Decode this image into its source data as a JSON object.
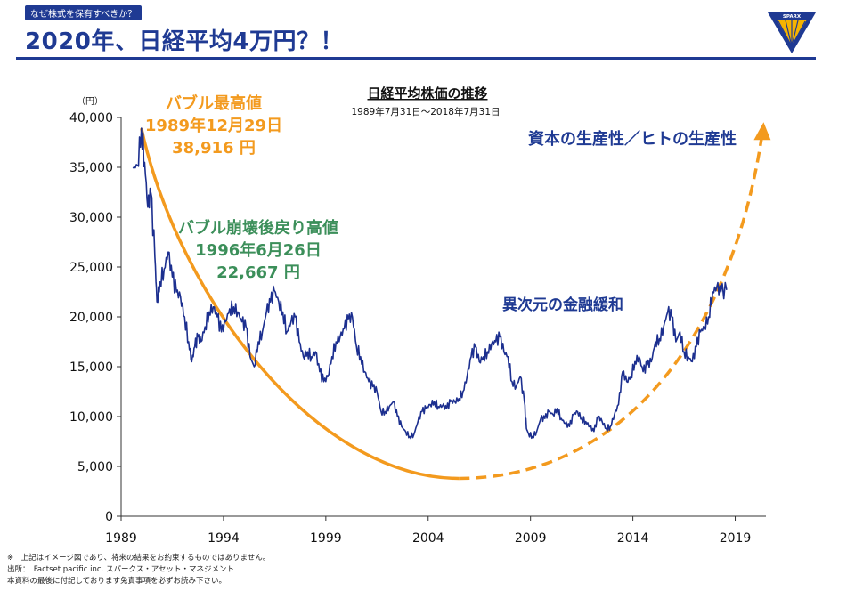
{
  "header": {
    "tag": "なぜ株式を保有すべきか？",
    "title": "2020年、日経平均4万円？！",
    "logo_text": "SPARX"
  },
  "colors": {
    "navy": "#1f3a93",
    "line": "#1c2f8f",
    "orange": "#f39a1e",
    "green": "#3c8f5a"
  },
  "chart_data": {
    "type": "line",
    "title": "日経平均株価の推移",
    "subtitle": "1989年7月31日～2018年7月31日",
    "ylabel": "（円）",
    "ylim": [
      0,
      40000
    ],
    "xlim": [
      1989,
      2020.5
    ],
    "yticks": [
      0,
      5000,
      10000,
      15000,
      20000,
      25000,
      30000,
      35000,
      40000
    ],
    "ytick_labels": [
      "0",
      "5,000",
      "10,000",
      "15,000",
      "20,000",
      "25,000",
      "30,000",
      "35,000",
      "40,000"
    ],
    "xticks": [
      1989,
      1994,
      1999,
      2004,
      2009,
      2014,
      2019
    ],
    "xtick_labels": [
      "1989",
      "1994",
      "1999",
      "2004",
      "2009",
      "2014",
      "2019"
    ],
    "series": [
      {
        "name": "日経平均株価",
        "x": [
          1989.58,
          1989.8,
          1989.99,
          1990.15,
          1990.3,
          1990.45,
          1990.65,
          1990.75,
          1990.9,
          1991.1,
          1991.3,
          1991.5,
          1991.7,
          1991.9,
          1992.1,
          1992.3,
          1992.45,
          1992.6,
          1992.75,
          1992.9,
          1993.1,
          1993.3,
          1993.5,
          1993.7,
          1993.9,
          1994.1,
          1994.3,
          1994.5,
          1994.7,
          1994.9,
          1995.1,
          1995.3,
          1995.5,
          1995.7,
          1995.9,
          1996.1,
          1996.3,
          1996.48,
          1996.7,
          1996.9,
          1997.1,
          1997.3,
          1997.5,
          1997.7,
          1997.9,
          1998.1,
          1998.3,
          1998.5,
          1998.7,
          1998.9,
          1999.1,
          1999.3,
          1999.5,
          1999.7,
          1999.9,
          2000.1,
          2000.3,
          2000.5,
          2000.7,
          2000.9,
          2001.1,
          2001.3,
          2001.5,
          2001.7,
          2001.9,
          2002.1,
          2002.3,
          2002.5,
          2002.7,
          2002.9,
          2003.1,
          2003.3,
          2003.5,
          2003.7,
          2003.9,
          2004.1,
          2004.3,
          2004.5,
          2004.7,
          2004.9,
          2005.1,
          2005.3,
          2005.5,
          2005.7,
          2005.9,
          2006.1,
          2006.3,
          2006.5,
          2006.7,
          2006.9,
          2007.1,
          2007.3,
          2007.5,
          2007.7,
          2007.9,
          2008.1,
          2008.3,
          2008.5,
          2008.7,
          2008.8,
          2008.9,
          2009.1,
          2009.3,
          2009.5,
          2009.7,
          2009.9,
          2010.1,
          2010.3,
          2010.5,
          2010.7,
          2010.9,
          2011.1,
          2011.3,
          2011.5,
          2011.7,
          2011.9,
          2012.1,
          2012.3,
          2012.5,
          2012.7,
          2012.9,
          2013.1,
          2013.3,
          2013.5,
          2013.7,
          2013.9,
          2014.1,
          2014.3,
          2014.5,
          2014.7,
          2014.9,
          2015.1,
          2015.3,
          2015.5,
          2015.7,
          2015.9,
          2016.1,
          2016.3,
          2016.5,
          2016.7,
          2016.9,
          2017.1,
          2017.3,
          2017.5,
          2017.7,
          2017.9,
          2018.1,
          2018.3,
          2018.58
        ],
        "values": [
          34900,
          35200,
          38916,
          35500,
          31000,
          32500,
          26000,
          21500,
          23500,
          24800,
          26500,
          24000,
          22500,
          22000,
          20000,
          17500,
          15500,
          17000,
          18000,
          17500,
          19000,
          20500,
          21000,
          20000,
          18500,
          19500,
          20800,
          21000,
          20500,
          19500,
          19000,
          16000,
          15000,
          17500,
          18500,
          20500,
          21500,
          22667,
          21500,
          20500,
          18500,
          19500,
          20000,
          17500,
          16000,
          16500,
          16000,
          16500,
          14500,
          13500,
          14000,
          16000,
          17500,
          18000,
          18800,
          19800,
          20000,
          17000,
          16000,
          14500,
          13500,
          13000,
          12500,
          10500,
          10500,
          11000,
          11500,
          10000,
          9000,
          8500,
          8000,
          8200,
          9500,
          10500,
          10800,
          11200,
          11500,
          11000,
          11100,
          10800,
          11500,
          11500,
          11800,
          12500,
          14000,
          16000,
          17000,
          15500,
          16000,
          16500,
          17300,
          17500,
          18000,
          16500,
          16000,
          13500,
          13000,
          14000,
          11500,
          8800,
          8300,
          8000,
          8500,
          9800,
          9800,
          10500,
          10200,
          10800,
          9800,
          9300,
          9000,
          10200,
          10500,
          9800,
          9500,
          9000,
          8500,
          10000,
          9500,
          8800,
          9000,
          10200,
          11200,
          14500,
          13500,
          14000,
          15500,
          16000,
          14500,
          15200,
          15500,
          17500,
          17800,
          19000,
          20500,
          20000,
          17500,
          18500,
          16500,
          16000,
          15500,
          17000,
          18500,
          19000,
          20000,
          22500,
          23000,
          22500,
          22700
        ]
      }
    ],
    "annotations": {
      "peak_label": [
        "バブル最高値",
        "1989年12月29日",
        "38,916 円"
      ],
      "rebound_label": [
        "バブル崩壊後戻り高値",
        "1996年6月26日",
        "22,667 円"
      ],
      "easing_label": "異次元の金融緩和",
      "target_label": "資本の生産性／ヒトの生産性"
    },
    "trend_curve": {
      "solid_x": [
        1989.99,
        2005.5
      ],
      "dashed_x": [
        2005.5,
        2020.3
      ],
      "y_min": 3800,
      "y_start": 38916,
      "y_end": 39000
    }
  },
  "footnotes": [
    "※　上記はイメージ図であり、将来の結果をお約束するものではありません。",
    "出所：　Factset pacific inc. スパークス・アセット・マネジメント",
    "本資料の最後に付記しております免責事項を必ずお読み下さい。"
  ]
}
